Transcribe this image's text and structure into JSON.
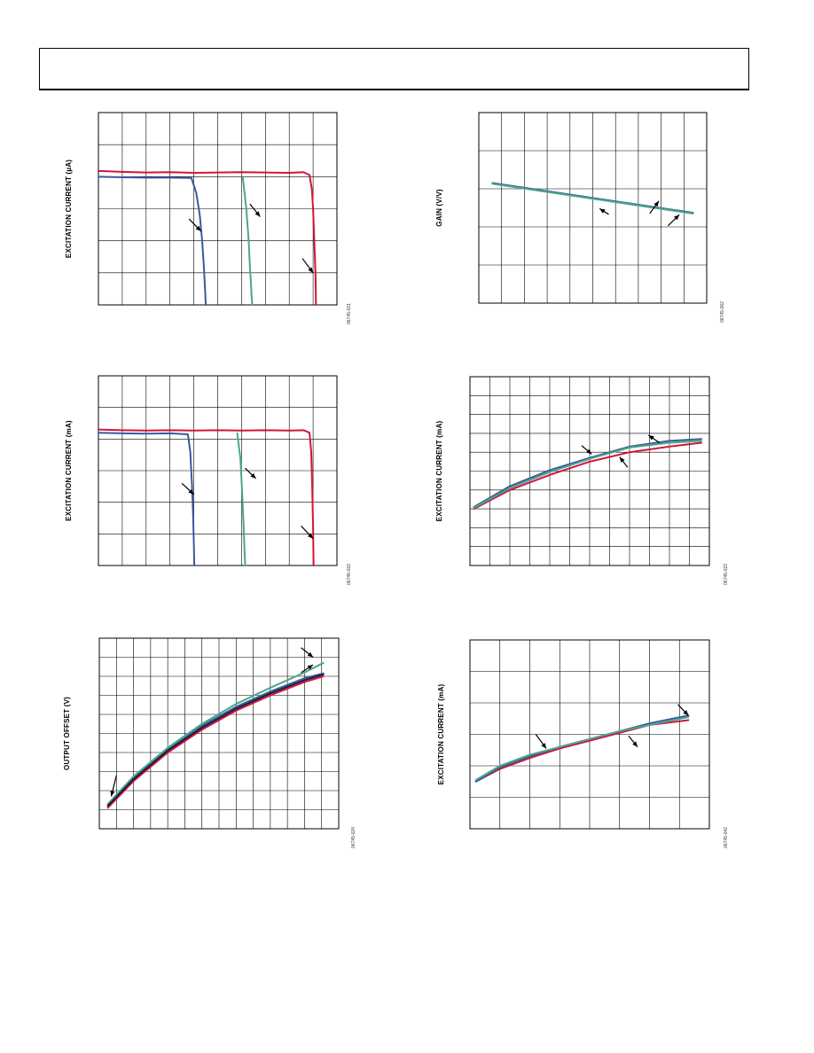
{
  "charts": [
    {
      "id": "p1",
      "ylabel": "EXCITATION CURRENT (µA)",
      "figcode": "06745-021",
      "chart_data": {
        "type": "line",
        "title": "",
        "xlabel": "",
        "ylabel": "EXCITATION CURRENT (µA)",
        "xlim": [
          0,
          10
        ],
        "ylim": [
          0,
          6
        ],
        "xgrid": 10,
        "ygrid": 6,
        "grid": true,
        "series": [
          {
            "color": "#d2143c",
            "x": [
              0,
              1,
              2,
              3,
              4,
              5,
              6,
              7,
              8,
              8.6,
              8.85,
              8.95,
              9.0,
              9.05,
              9.1,
              9.12
            ],
            "y": [
              4.18,
              4.15,
              4.13,
              4.14,
              4.12,
              4.13,
              4.14,
              4.13,
              4.12,
              4.14,
              4.05,
              3.6,
              3.0,
              2.0,
              1.0,
              0
            ]
          },
          {
            "color": "#3a5a9a",
            "x": [
              0,
              1,
              2,
              3,
              3.9,
              4.1,
              4.25,
              4.35,
              4.42,
              4.47,
              4.5
            ],
            "y": [
              4.0,
              3.98,
              3.97,
              3.97,
              3.96,
              3.5,
              2.8,
              2.0,
              1.2,
              0.5,
              0
            ]
          },
          {
            "color": "#4aa88a",
            "x": [
              6.05,
              6.2,
              6.3,
              6.35,
              6.4,
              6.42,
              6.45
            ],
            "y": [
              4.0,
              3.0,
              2.0,
              1.2,
              0.6,
              0.3,
              0
            ]
          }
        ]
      },
      "arrows": [
        {
          "from": [
            3.8,
            2.68
          ],
          "to": [
            4.3,
            2.3
          ]
        },
        {
          "from": [
            6.35,
            3.15
          ],
          "to": [
            6.78,
            2.75
          ]
        },
        {
          "from": [
            8.55,
            1.45
          ],
          "to": [
            9.0,
            1.0
          ]
        }
      ]
    },
    {
      "id": "p2",
      "ylabel": "GAIN (V/V)",
      "figcode": "06745-062",
      "chart_data": {
        "type": "line",
        "title": "",
        "xlabel": "",
        "ylabel": "GAIN (V/V)",
        "xlim": [
          0,
          10
        ],
        "ylim": [
          0,
          5
        ],
        "xgrid": 10,
        "ygrid": 5,
        "grid": true,
        "series": [
          {
            "color": "#3a5a9a",
            "x": [
              0.6,
              9.4
            ],
            "y": [
              3.15,
              2.37
            ]
          },
          {
            "color": "#4aa88a",
            "x": [
              0.6,
              9.4
            ],
            "y": [
              3.13,
              2.35
            ]
          }
        ]
      },
      "arrows": [
        {
          "from": [
            5.7,
            2.33
          ],
          "to": [
            5.3,
            2.48
          ]
        },
        {
          "from": [
            7.5,
            2.35
          ],
          "to": [
            7.9,
            2.68
          ]
        },
        {
          "from": [
            8.3,
            2.03
          ],
          "to": [
            8.8,
            2.32
          ]
        }
      ]
    },
    {
      "id": "p3",
      "ylabel": "EXCITATION CURRENT (mA)",
      "figcode": "06745-022",
      "chart_data": {
        "type": "line",
        "title": "",
        "xlabel": "",
        "ylabel": "EXCITATION CURRENT (mA)",
        "xlim": [
          0,
          10
        ],
        "ylim": [
          0,
          6
        ],
        "xgrid": 10,
        "ygrid": 6,
        "grid": true,
        "series": [
          {
            "color": "#d2143c",
            "x": [
              0,
              1,
              2,
              3,
              4,
              5,
              6,
              7,
              8,
              8.6,
              8.85,
              8.92,
              8.96,
              9.0,
              9.02
            ],
            "y": [
              4.3,
              4.28,
              4.27,
              4.28,
              4.27,
              4.28,
              4.27,
              4.28,
              4.27,
              4.28,
              4.2,
              3.6,
              2.6,
              1.2,
              0
            ]
          },
          {
            "color": "#3a5a9a",
            "x": [
              0,
              1,
              2,
              3,
              3.75,
              3.85,
              3.92,
              3.97,
              4.0,
              4.02
            ],
            "y": [
              4.2,
              4.18,
              4.17,
              4.18,
              4.15,
              3.6,
              2.6,
              1.6,
              0.7,
              0
            ]
          },
          {
            "color": "#4aa88a",
            "x": [
              5.82,
              5.95,
              6.02,
              6.08,
              6.12,
              6.15
            ],
            "y": [
              4.18,
              3.4,
              2.4,
              1.4,
              0.6,
              0
            ]
          }
        ]
      },
      "arrows": [
        {
          "from": [
            3.5,
            2.6
          ],
          "to": [
            4.0,
            2.25
          ]
        },
        {
          "from": [
            6.15,
            3.08
          ],
          "to": [
            6.6,
            2.75
          ]
        },
        {
          "from": [
            8.5,
            1.25
          ],
          "to": [
            9.0,
            0.85
          ]
        }
      ]
    },
    {
      "id": "p4",
      "ylabel": "EXCITATION CURRENT (mA)",
      "figcode": "06745-023",
      "chart_data": {
        "type": "line",
        "title": "",
        "xlabel": "",
        "ylabel": "EXCITATION CURRENT (mA)",
        "xlim": [
          0,
          12
        ],
        "ylim": [
          0,
          10
        ],
        "xgrid": 12,
        "ygrid": 10,
        "grid": true,
        "series": [
          {
            "color": "#d2143c",
            "x": [
              0.2,
              2,
              4,
              6,
              8,
              10,
              11.6
            ],
            "y": [
              3.0,
              4.0,
              4.8,
              5.5,
              6.0,
              6.3,
              6.5
            ]
          },
          {
            "color": "#3a5a9a",
            "x": [
              0.2,
              2,
              4,
              6,
              8,
              10,
              11.6
            ],
            "y": [
              3.1,
              4.2,
              5.05,
              5.7,
              6.3,
              6.6,
              6.7
            ]
          },
          {
            "color": "#4aa88a",
            "x": [
              0.2,
              2,
              4,
              6,
              8,
              10,
              11.6
            ],
            "y": [
              3.05,
              4.1,
              4.95,
              5.65,
              6.25,
              6.5,
              6.6
            ]
          }
        ]
      },
      "arrows": [
        {
          "from": [
            5.6,
            6.35
          ],
          "to": [
            6.1,
            5.9
          ]
        },
        {
          "from": [
            7.9,
            5.2
          ],
          "to": [
            7.5,
            5.75
          ]
        },
        {
          "from": [
            9.5,
            6.5
          ],
          "to": [
            8.95,
            6.9
          ]
        }
      ]
    },
    {
      "id": "p5",
      "ylabel": "OUTPUT OFFSET (V)",
      "figcode": "06745-024",
      "chart_data": {
        "type": "line",
        "title": "",
        "xlabel": "",
        "ylabel": "OUTPUT OFFSET (V)",
        "xlim": [
          0,
          14
        ],
        "ylim": [
          0,
          10
        ],
        "xgrid": 14,
        "ygrid": 10,
        "grid": true,
        "series": [
          {
            "color": "#d2143c",
            "x": [
              0.5,
              2,
              4,
              6,
              8,
              10,
              12,
              13.1
            ],
            "y": [
              1.1,
              2.5,
              4.0,
              5.2,
              6.2,
              7.0,
              7.7,
              8.0
            ]
          },
          {
            "color": "#3a5a9a",
            "x": [
              0.5,
              2,
              4,
              6,
              8,
              10,
              12,
              13.1
            ],
            "y": [
              1.25,
              2.7,
              4.2,
              5.4,
              6.4,
              7.2,
              7.9,
              8.15
            ]
          },
          {
            "color": "#4aa88a",
            "x": [
              0.5,
              2,
              4,
              6,
              8,
              10,
              12,
              13.1
            ],
            "y": [
              1.3,
              2.75,
              4.25,
              5.5,
              6.55,
              7.4,
              8.2,
              8.7
            ]
          },
          {
            "color": "#1c1c3c",
            "x": [
              0.5,
              2,
              4,
              6,
              8,
              10,
              12,
              13.1
            ],
            "y": [
              1.2,
              2.6,
              4.1,
              5.3,
              6.3,
              7.1,
              7.8,
              8.1
            ]
          }
        ]
      },
      "arrows": [
        {
          "from": [
            1.0,
            2.8
          ],
          "to": [
            0.7,
            1.7
          ]
        },
        {
          "from": [
            11.8,
            9.5
          ],
          "to": [
            12.5,
            9.0
          ]
        },
        {
          "from": [
            11.8,
            8.2
          ],
          "to": [
            12.5,
            8.6
          ]
        }
      ]
    },
    {
      "id": "p6",
      "ylabel": "EXCITATION CURRENT (mA)",
      "figcode": "06745-042",
      "chart_data": {
        "type": "line",
        "title": "",
        "xlabel": "",
        "ylabel": "EXCITATION CURRENT (mA)",
        "xlim": [
          0,
          8
        ],
        "ylim": [
          0,
          6
        ],
        "xgrid": 8,
        "ygrid": 6,
        "grid": true,
        "series": [
          {
            "color": "#d2143c",
            "x": [
              0.2,
              1,
              2,
              3,
              4,
              5,
              6,
              7.3
            ],
            "y": [
              1.5,
              1.9,
              2.25,
              2.55,
              2.8,
              3.05,
              3.3,
              3.45
            ]
          },
          {
            "color": "#3a5a9a",
            "x": [
              0.2,
              1,
              2,
              3,
              4,
              5,
              6,
              7.3
            ],
            "y": [
              1.5,
              1.95,
              2.3,
              2.6,
              2.85,
              3.1,
              3.35,
              3.6
            ]
          },
          {
            "color": "#4aa88a",
            "x": [
              0.2,
              1,
              2,
              3,
              4,
              5,
              6,
              7.3
            ],
            "y": [
              1.55,
              2.0,
              2.35,
              2.6,
              2.85,
              3.1,
              3.3,
              3.55
            ]
          }
        ]
      },
      "arrows": [
        {
          "from": [
            2.2,
            3.0
          ],
          "to": [
            2.55,
            2.55
          ]
        },
        {
          "from": [
            5.3,
            2.95
          ],
          "to": [
            5.6,
            2.6
          ]
        },
        {
          "from": [
            6.95,
            3.95
          ],
          "to": [
            7.3,
            3.6
          ]
        }
      ]
    }
  ]
}
